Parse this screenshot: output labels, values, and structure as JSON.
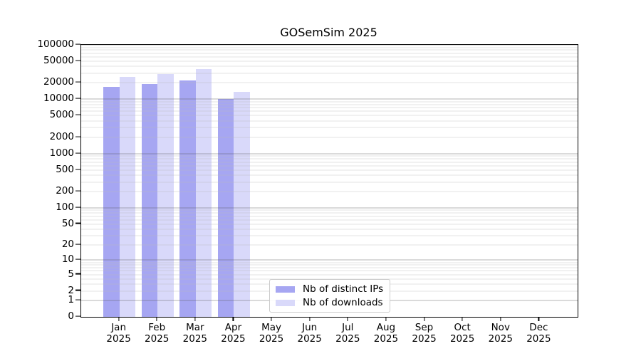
{
  "title": "GOSemSim 2025",
  "chart_data": {
    "type": "bar",
    "title": "GOSemSim 2025",
    "categories": [
      "Jan 2025",
      "Feb 2025",
      "Mar 2025",
      "Apr 2025",
      "May 2025",
      "Jun 2025",
      "Jul 2025",
      "Aug 2025",
      "Sep 2025",
      "Oct 2025",
      "Nov 2025",
      "Dec 2025"
    ],
    "series": [
      {
        "name": "Nb of distinct IPs",
        "color": "#a6a6f2",
        "values": [
          17000,
          19000,
          22200,
          10200,
          null,
          null,
          null,
          null,
          null,
          null,
          null,
          null
        ]
      },
      {
        "name": "Nb of downloads",
        "color": "#d9d9fa",
        "values": [
          25600,
          29100,
          35700,
          13800,
          null,
          null,
          null,
          null,
          null,
          null,
          null,
          null
        ]
      }
    ],
    "yscale": "log1p",
    "ylim": [
      0,
      100000
    ],
    "yticks": [
      0,
      1,
      2,
      5,
      10,
      20,
      50,
      100,
      200,
      500,
      1000,
      2000,
      5000,
      10000,
      20000,
      50000,
      100000
    ],
    "grid": "horizontal; dark lines at powers of 10, light minor lines at 2-9 multiples",
    "legend_position": "inside lower-center"
  }
}
